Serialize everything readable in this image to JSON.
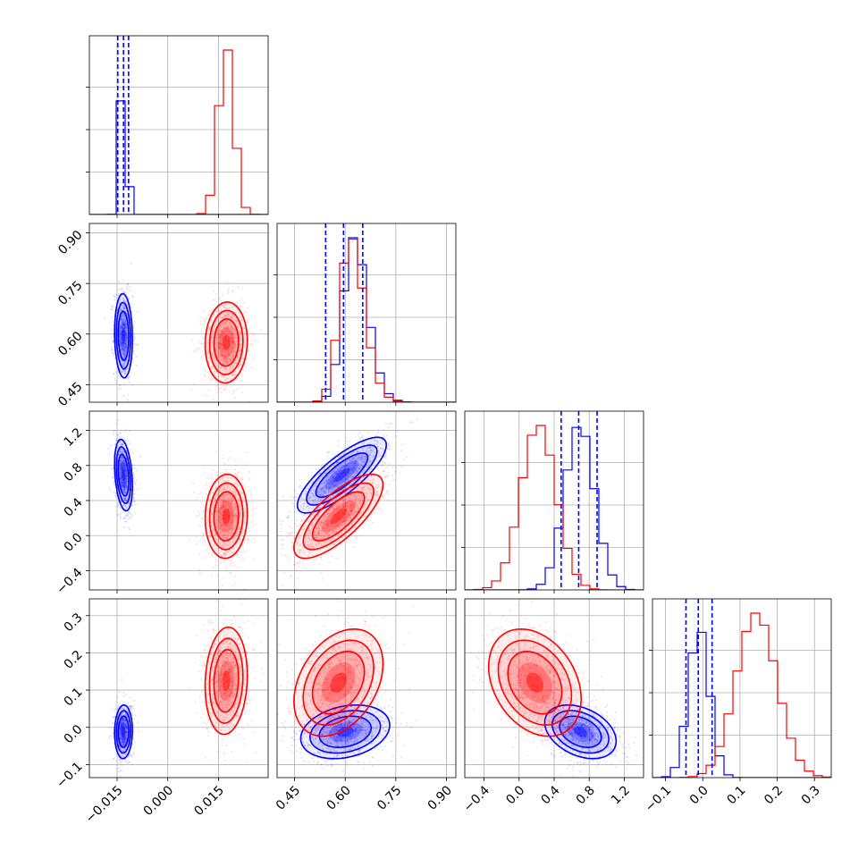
{
  "chart_data": {
    "type": "corner",
    "grid": true,
    "variables": [
      {
        "range": [
          -0.0232,
          0.0297
        ],
        "ticks": [
          -0.015,
          0.0,
          0.015
        ],
        "tick_labels": [
          "−0.015",
          "0.000",
          "0.015"
        ]
      },
      {
        "range": [
          0.398,
          0.928
        ],
        "ticks": [
          0.45,
          0.6,
          0.75,
          0.9
        ],
        "tick_labels": [
          "0.45",
          "0.60",
          "0.75",
          "0.90"
        ]
      },
      {
        "range": [
          -0.62,
          1.42
        ],
        "ticks": [
          -0.4,
          0.0,
          0.4,
          0.8,
          1.2
        ],
        "tick_labels": [
          "−0.4",
          "0.0",
          "0.4",
          "0.8",
          "1.2"
        ]
      },
      {
        "range": [
          -0.135,
          0.345
        ],
        "ticks": [
          -0.1,
          0.0,
          0.1,
          0.2,
          0.3
        ],
        "tick_labels": [
          "−0.1",
          "0.0",
          "0.1",
          "0.2",
          "0.3"
        ]
      }
    ],
    "series": [
      {
        "color": "#0000ff",
        "quantiles": [
          [
            -0.0148,
            -0.0131,
            -0.0116
          ],
          [
            0.542,
            0.595,
            0.652
          ],
          [
            0.48,
            0.68,
            0.89
          ],
          [
            -0.045,
            -0.012,
            0.025
          ]
        ],
        "marginal_means": [
          -0.0131,
          0.6,
          0.69,
          -0.01
        ],
        "marginal_sds": [
          0.00095,
          0.05,
          0.17,
          0.028
        ],
        "marginal_skews": [
          0,
          1.5,
          0,
          0
        ],
        "pairs": [
          {
            "x": 0,
            "y": 1,
            "mean": [
              -0.0131,
              0.595
            ],
            "sd": [
              0.0011,
              0.052
            ],
            "rho": -0.08
          },
          {
            "x": 0,
            "y": 2,
            "mean": [
              -0.0131,
              0.69
            ],
            "sd": [
              0.0011,
              0.17
            ],
            "rho": -0.3
          },
          {
            "x": 0,
            "y": 3,
            "mean": [
              -0.0131,
              -0.012
            ],
            "sd": [
              0.0011,
              0.03
            ],
            "rho": 0.05
          },
          {
            "x": 1,
            "y": 2,
            "mean": [
              0.59,
              0.69
            ],
            "sd": [
              0.055,
              0.18
            ],
            "rho": 0.8
          },
          {
            "x": 1,
            "y": 3,
            "mean": [
              0.6,
              -0.012
            ],
            "sd": [
              0.055,
              0.03
            ],
            "rho": 0.25
          },
          {
            "x": 2,
            "y": 3,
            "mean": [
              0.7,
              -0.012
            ],
            "sd": [
              0.17,
              0.03
            ],
            "rho": -0.35
          }
        ]
      },
      {
        "color": "#ff0000",
        "quantiles": [],
        "marginal_means": [
          0.0173,
          0.59,
          0.22,
          0.12
        ],
        "marginal_sds": [
          0.0023,
          0.05,
          0.2,
          0.06
        ],
        "marginal_skews": [
          0,
          1.5,
          0,
          0.6
        ],
        "pairs": [
          {
            "x": 0,
            "y": 1,
            "mean": [
              0.0173,
              0.575
            ],
            "sd": [
              0.0026,
              0.05
            ],
            "rho": 0.05
          },
          {
            "x": 0,
            "y": 2,
            "mean": [
              0.0173,
              0.22
            ],
            "sd": [
              0.0026,
              0.2
            ],
            "rho": 0.05
          },
          {
            "x": 0,
            "y": 3,
            "mean": [
              0.0173,
              0.125
            ],
            "sd": [
              0.0026,
              0.06
            ],
            "rho": 0.1
          },
          {
            "x": 1,
            "y": 2,
            "mean": [
              0.58,
              0.22
            ],
            "sd": [
              0.055,
              0.2
            ],
            "rho": 0.75
          },
          {
            "x": 1,
            "y": 3,
            "mean": [
              0.58,
              0.12
            ],
            "sd": [
              0.055,
              0.06
            ],
            "rho": 0.35
          },
          {
            "x": 2,
            "y": 3,
            "mean": [
              0.18,
              0.12
            ],
            "sd": [
              0.22,
              0.06
            ],
            "rho": -0.3
          }
        ]
      }
    ]
  }
}
